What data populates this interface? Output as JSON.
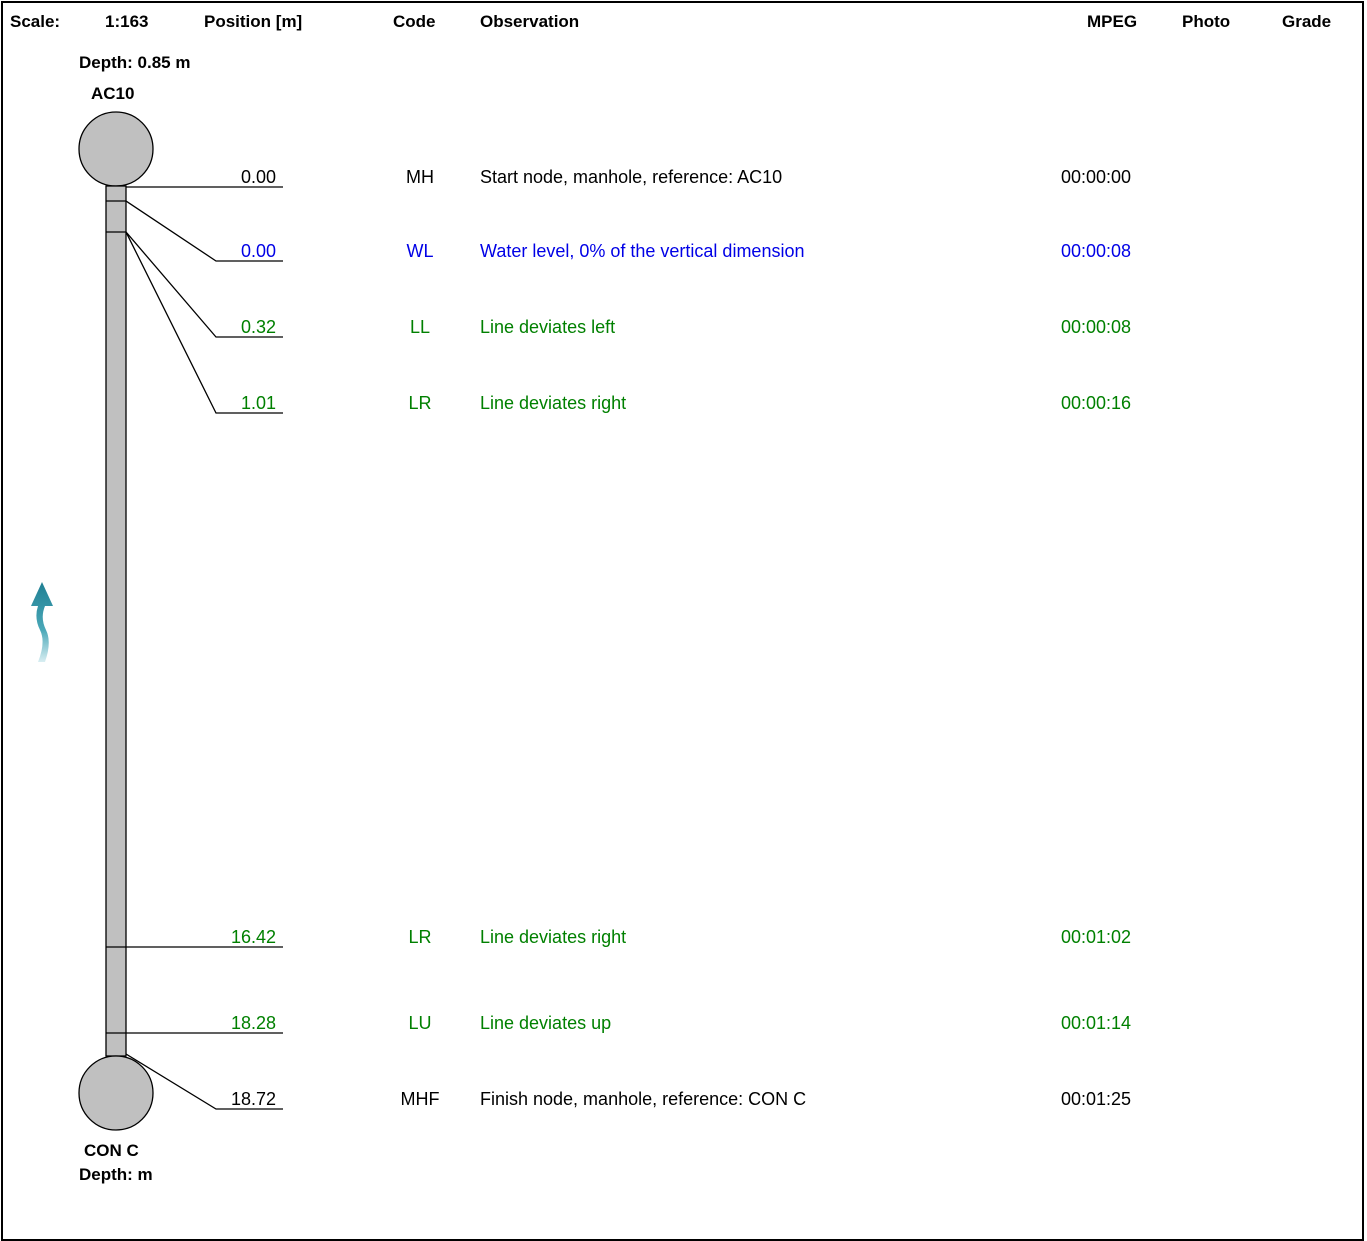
{
  "header": {
    "scale_label": "Scale:",
    "scale_value": "1:163",
    "position_label": "Position [m]",
    "code_label": "Code",
    "observation_label": "Observation",
    "mpeg_label": "MPEG",
    "photo_label": "Photo",
    "grade_label": "Grade"
  },
  "start_node": {
    "depth": "Depth: 0.85 m",
    "name": "AC10"
  },
  "finish_node": {
    "name": "CON C",
    "depth": "Depth: m"
  },
  "colors": {
    "default": "#000000",
    "water": "#0000e6",
    "deviation": "#008000",
    "flow_arrow": "#1f7f93"
  },
  "observations": [
    {
      "position": "0.00",
      "code": "MH",
      "text": "Start node, manhole, reference: AC10",
      "mpeg": "00:00:00",
      "color": "#000000"
    },
    {
      "position": "0.00",
      "code": "WL",
      "text": "Water level, 0% of the vertical dimension",
      "mpeg": "00:00:08",
      "color": "#0000e6"
    },
    {
      "position": "0.32",
      "code": "LL",
      "text": "Line deviates left",
      "mpeg": "00:00:08",
      "color": "#008000"
    },
    {
      "position": "1.01",
      "code": "LR",
      "text": "Line deviates right",
      "mpeg": "00:00:16",
      "color": "#008000"
    },
    {
      "position": "16.42",
      "code": "LR",
      "text": "Line deviates right",
      "mpeg": "00:01:02",
      "color": "#008000"
    },
    {
      "position": "18.28",
      "code": "LU",
      "text": "Line deviates up",
      "mpeg": "00:01:14",
      "color": "#008000"
    },
    {
      "position": "18.72",
      "code": "MHF",
      "text": "Finish node, manhole, reference: CON C",
      "mpeg": "00:01:25",
      "color": "#000000"
    }
  ]
}
